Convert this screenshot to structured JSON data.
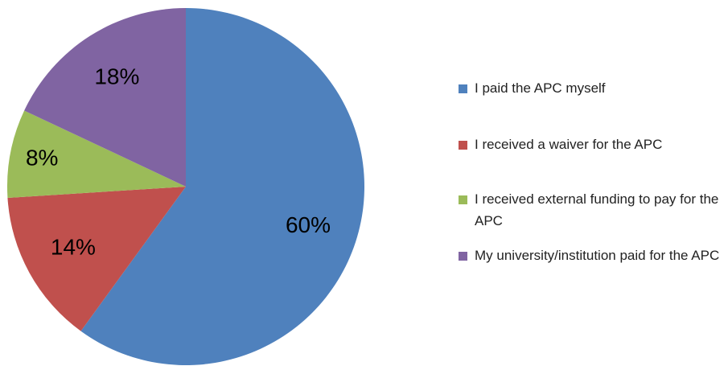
{
  "chart_data": {
    "type": "pie",
    "categories": [
      "I paid the APC myself",
      "I received a waiver for the APC",
      "I received external funding to pay for the APC",
      "My university/institution paid for the APC"
    ],
    "values": [
      60,
      14,
      8,
      18
    ],
    "value_labels": [
      "60%",
      "14%",
      "8%",
      "18%"
    ],
    "colors": [
      "#4f81bd",
      "#c0504d",
      "#9bbb59",
      "#8064a2"
    ],
    "legend": "right"
  }
}
